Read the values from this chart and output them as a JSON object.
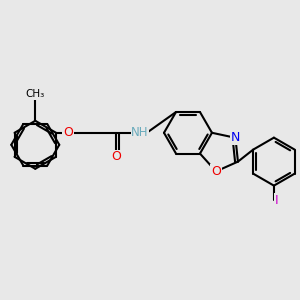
{
  "background_color": "#e8e8e8",
  "atom_colors": {
    "C": "#000000",
    "H": "#6aabbc",
    "N": "#0000ee",
    "O": "#ee0000",
    "I": "#cc00cc"
  },
  "bond_color": "#000000",
  "bond_lw": 1.5,
  "dbo": 0.055,
  "figsize": [
    3.0,
    3.0
  ],
  "dpi": 100
}
